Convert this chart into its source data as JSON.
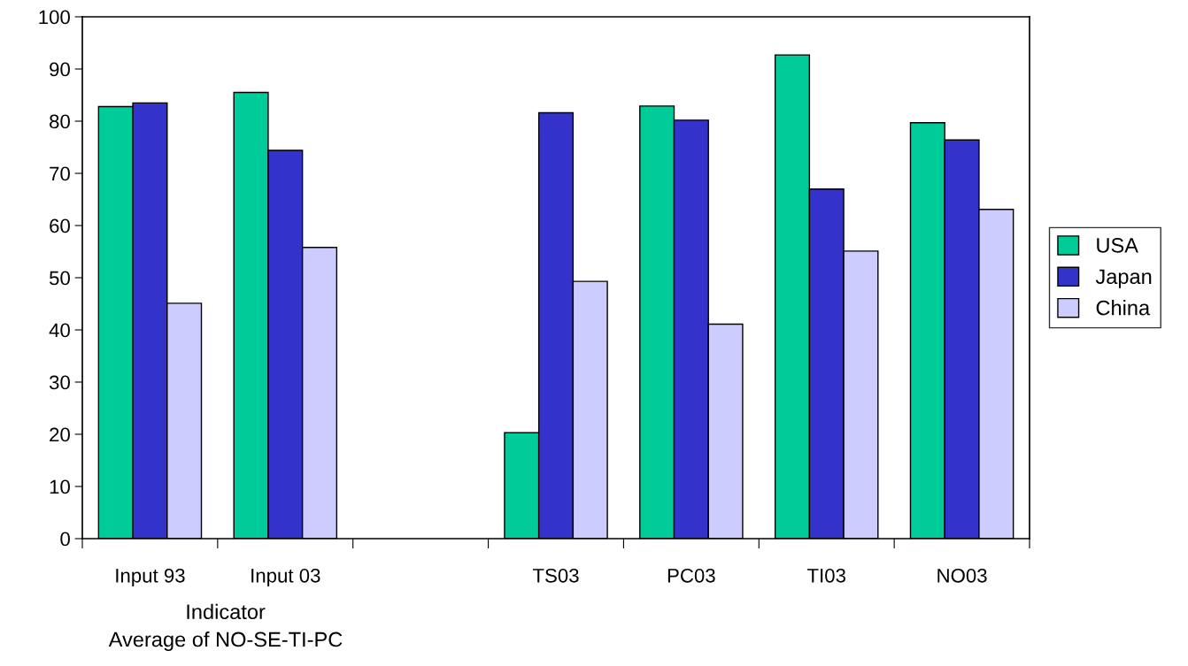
{
  "chart_data": {
    "type": "bar",
    "xlabel": "Indicator",
    "annotations": [
      "Average of NO-SE-TI-PC"
    ],
    "categories": [
      "Input 93",
      "Input 03",
      null,
      "TS03",
      "PC03",
      "TI03",
      "NO03"
    ],
    "series": [
      {
        "name": "USA",
        "color": "#00cc99",
        "values": [
          82.8,
          85.5,
          null,
          20.3,
          82.9,
          92.7,
          79.7
        ]
      },
      {
        "name": "Japan",
        "color": "#3333cc",
        "values": [
          83.5,
          74.4,
          null,
          81.6,
          80.2,
          67.0,
          76.4
        ]
      },
      {
        "name": "China",
        "color": "#ccccff",
        "values": [
          45.1,
          55.8,
          null,
          49.3,
          41.1,
          55.1,
          63.1
        ]
      }
    ],
    "ylim": [
      0,
      100
    ],
    "yticks": [
      0,
      10,
      20,
      30,
      40,
      50,
      60,
      70,
      80,
      90,
      100
    ],
    "grid": false,
    "legend": "right"
  }
}
